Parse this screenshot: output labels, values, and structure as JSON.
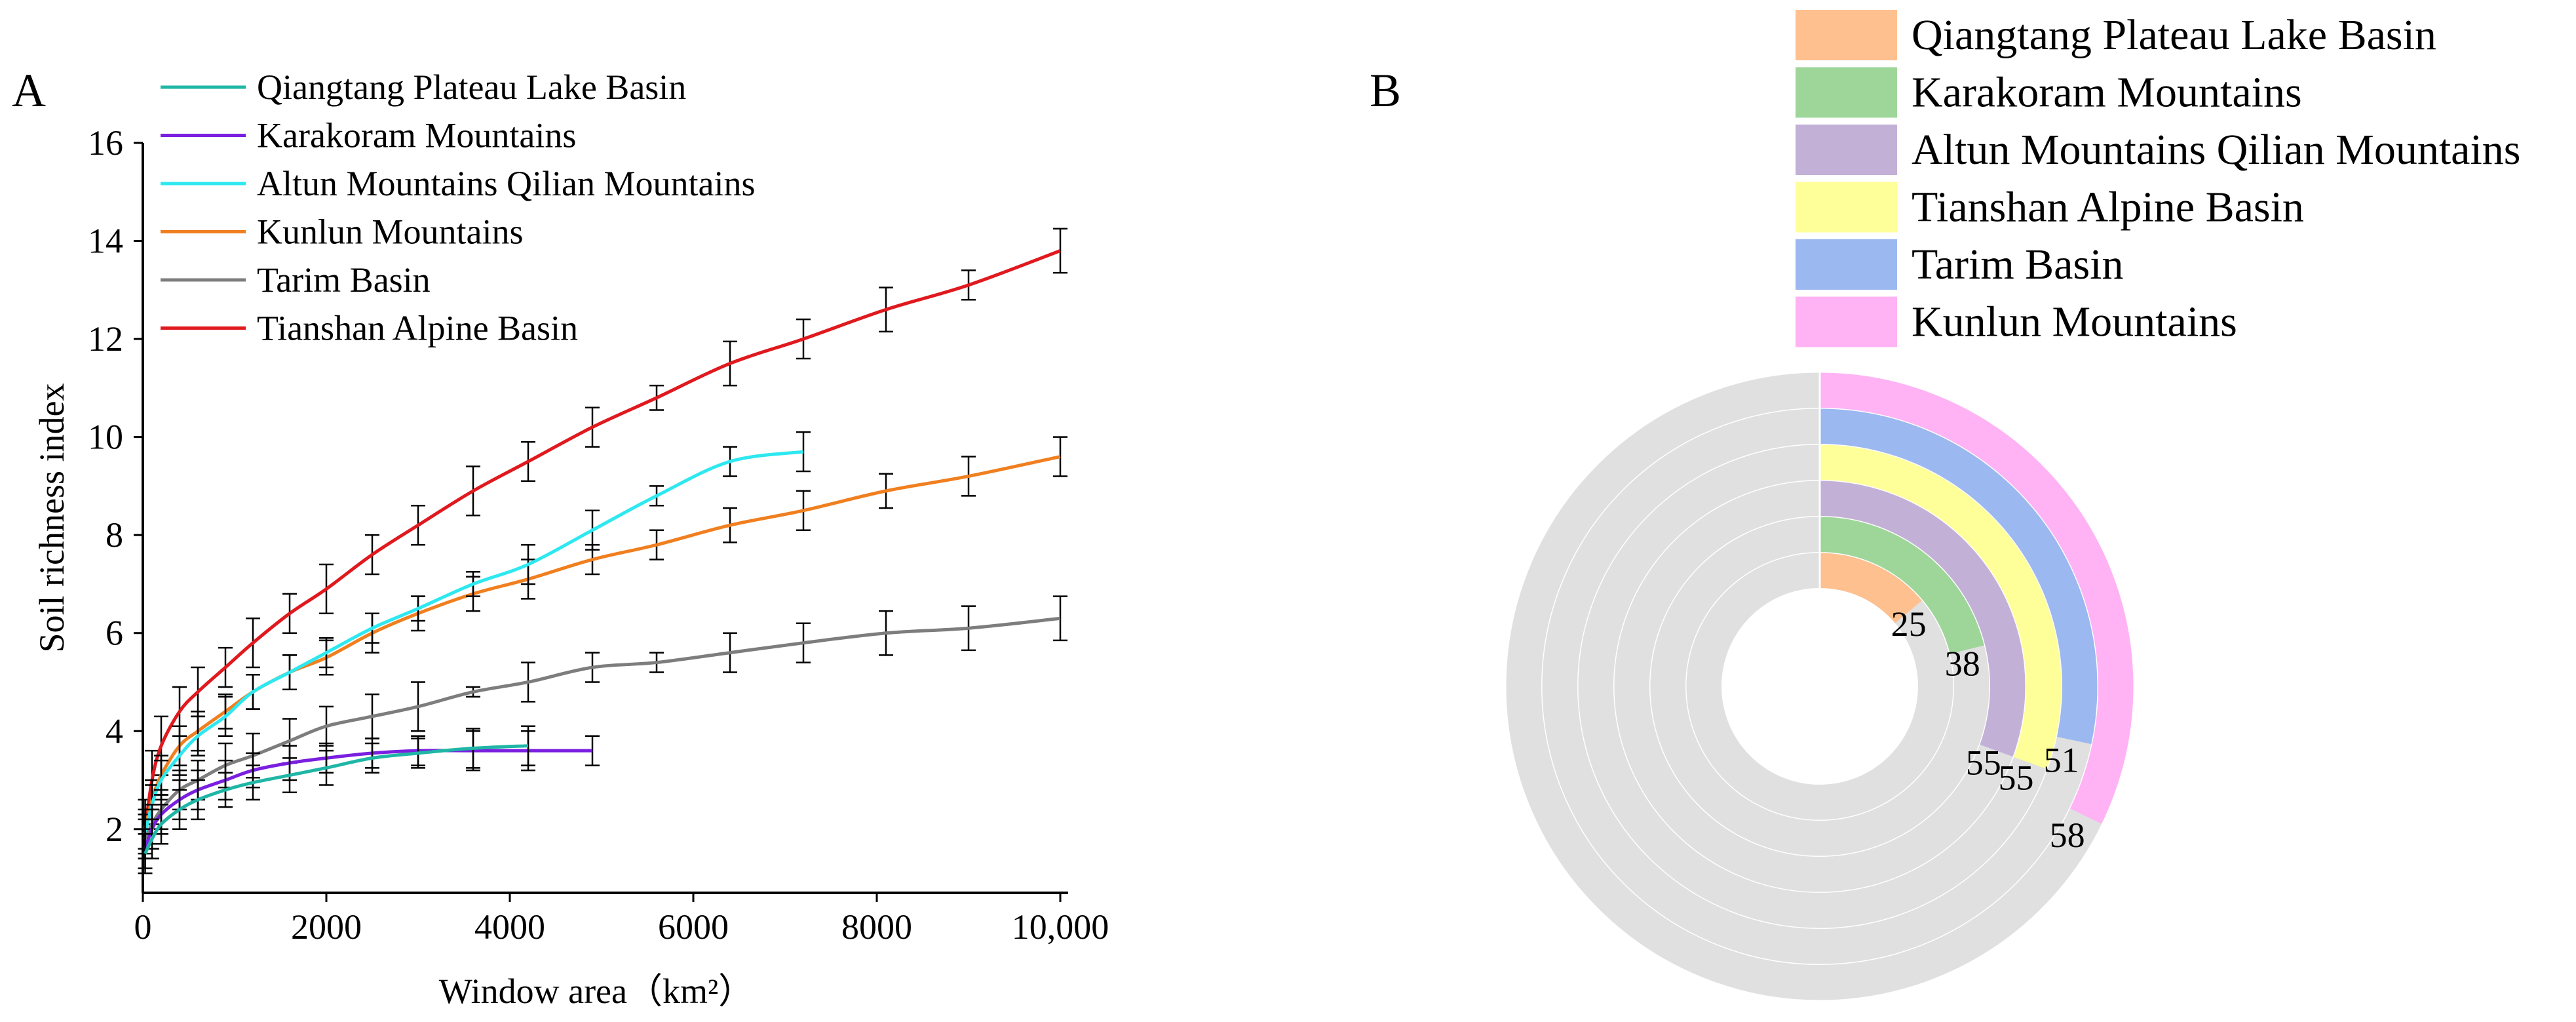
{
  "panel_a": {
    "label": "A",
    "legend": [
      {
        "name": "Qiangtang Plateau Lake Basin",
        "color": "#1fb6a6"
      },
      {
        "name": "Karakoram Mountains",
        "color": "#7a1fe0"
      },
      {
        "name": "Altun Mountains Qilian Mountains",
        "color": "#2ee8f0"
      },
      {
        "name": "Kunlun Mountains",
        "color": "#f07f1f"
      },
      {
        "name": "Tarim Basin",
        "color": "#7d7d7d"
      },
      {
        "name": "Tianshan Alpine Basin",
        "color": "#e0191e"
      }
    ]
  },
  "panel_b": {
    "label": "B",
    "legend": [
      {
        "name": "Qiangtang Plateau Lake Basin",
        "color": "#ffc08f"
      },
      {
        "name": "Karakoram Mountains",
        "color": "#9ed69a"
      },
      {
        "name": "Altun Mountains Qilian Mountains",
        "color": "#c3b0d6"
      },
      {
        "name": "Tianshan Alpine Basin",
        "color": "#ffff99"
      },
      {
        "name": "Tarim Basin",
        "color": "#9bb8f0"
      },
      {
        "name": "Kunlun Mountains",
        "color": "#ffb3f5"
      }
    ]
  },
  "chart_data": [
    {
      "type": "line",
      "title": "",
      "xlabel": "Window area（km²）",
      "ylabel": "Soil richness index",
      "xlim": [
        0,
        10000
      ],
      "ylim": [
        0.7,
        16
      ],
      "xticks": [
        0,
        2000,
        4000,
        6000,
        8000,
        10000
      ],
      "xtick_labels": [
        "0",
        "2000",
        "4000",
        "6000",
        "8000",
        "10,000"
      ],
      "yticks": [
        2,
        4,
        6,
        8,
        10,
        12,
        14,
        16
      ],
      "ytick_labels": [
        "2",
        "4",
        "6",
        "8",
        "10",
        "12",
        "14",
        "16"
      ],
      "legend_position": "top-left",
      "series": [
        {
          "name": "Tianshan Alpine Basin",
          "color": "#e0191e",
          "x": [
            25,
            100,
            200,
            400,
            600,
            900,
            1200,
            1600,
            2000,
            2500,
            3000,
            3600,
            4200,
            4900,
            5600,
            6400,
            7200,
            8100,
            9000,
            10000
          ],
          "y": [
            2.0,
            3.0,
            3.7,
            4.4,
            4.8,
            5.3,
            5.8,
            6.4,
            6.9,
            7.6,
            8.2,
            8.9,
            9.5,
            10.2,
            10.8,
            11.5,
            12.0,
            12.6,
            13.1,
            13.8
          ],
          "err": [
            0.6,
            0.6,
            0.6,
            0.5,
            0.5,
            0.4,
            0.5,
            0.4,
            0.5,
            0.4,
            0.4,
            0.5,
            0.4,
            0.4,
            0.25,
            0.45,
            0.4,
            0.45,
            0.3,
            0.45
          ]
        },
        {
          "name": "Kunlun Mountains",
          "color": "#f07f1f",
          "x": [
            25,
            100,
            200,
            400,
            600,
            900,
            1200,
            1600,
            2000,
            2500,
            3000,
            3600,
            4200,
            4900,
            5600,
            6400,
            7200,
            8100,
            9000,
            10000
          ],
          "y": [
            2.0,
            2.6,
            3.1,
            3.7,
            4.0,
            4.4,
            4.8,
            5.2,
            5.5,
            6.0,
            6.4,
            6.8,
            7.1,
            7.5,
            7.8,
            8.2,
            8.5,
            8.9,
            9.2,
            9.6
          ],
          "err": [
            0.4,
            0.4,
            0.4,
            0.4,
            0.4,
            0.35,
            0.35,
            0.35,
            0.35,
            0.4,
            0.35,
            0.35,
            0.4,
            0.3,
            0.3,
            0.35,
            0.4,
            0.35,
            0.4,
            0.4
          ]
        },
        {
          "name": "Altun Mountains Qilian Mountains",
          "color": "#2ee8f0",
          "x": [
            25,
            100,
            200,
            400,
            600,
            900,
            1200,
            1600,
            2000,
            2500,
            3000,
            3600,
            4200,
            4900,
            5600,
            6400,
            7200
          ],
          "y": [
            1.9,
            2.5,
            3.0,
            3.5,
            3.9,
            4.3,
            4.8,
            5.2,
            5.6,
            6.1,
            6.5,
            7.0,
            7.4,
            8.1,
            8.8,
            9.5,
            9.7
          ],
          "err": [
            0.4,
            0.4,
            0.4,
            0.4,
            0.4,
            0.4,
            0.35,
            0.35,
            0.3,
            0.3,
            0.25,
            0.25,
            0.4,
            0.4,
            0.2,
            0.3,
            0.4
          ]
        },
        {
          "name": "Tarim Basin",
          "color": "#7d7d7d",
          "x": [
            25,
            100,
            200,
            400,
            600,
            900,
            1200,
            1600,
            2000,
            2500,
            3000,
            3600,
            4200,
            4900,
            5600,
            6400,
            7200,
            8100,
            9000,
            10000
          ],
          "y": [
            1.8,
            2.1,
            2.4,
            2.8,
            3.0,
            3.3,
            3.5,
            3.8,
            4.1,
            4.3,
            4.5,
            4.8,
            5.0,
            5.3,
            5.4,
            5.6,
            5.8,
            6.0,
            6.1,
            6.3
          ],
          "err": [
            0.4,
            0.4,
            0.4,
            0.4,
            0.4,
            0.45,
            0.45,
            0.45,
            0.4,
            0.45,
            0.5,
            0.1,
            0.4,
            0.3,
            0.2,
            0.4,
            0.4,
            0.45,
            0.45,
            0.45
          ]
        },
        {
          "name": "Karakoram Mountains",
          "color": "#7a1fe0",
          "x": [
            25,
            100,
            200,
            400,
            600,
            900,
            1200,
            1600,
            2000,
            2500,
            3000,
            3600,
            4200,
            4900
          ],
          "y": [
            1.6,
            2.0,
            2.3,
            2.6,
            2.8,
            3.0,
            3.2,
            3.35,
            3.45,
            3.55,
            3.6,
            3.6,
            3.6,
            3.6
          ],
          "err": [
            0.4,
            0.4,
            0.4,
            0.4,
            0.4,
            0.4,
            0.35,
            0.35,
            0.3,
            0.3,
            0.3,
            0.4,
            0.4,
            0.3
          ]
        },
        {
          "name": "Qiangtang Plateau Lake Basin",
          "color": "#1fb6a6",
          "x": [
            25,
            100,
            200,
            400,
            600,
            900,
            1200,
            1600,
            2000,
            2500,
            3000,
            3600,
            4200
          ],
          "y": [
            1.5,
            1.8,
            2.1,
            2.4,
            2.6,
            2.8,
            2.95,
            3.1,
            3.25,
            3.45,
            3.55,
            3.65,
            3.7
          ],
          "err": [
            0.4,
            0.4,
            0.4,
            0.4,
            0.4,
            0.35,
            0.35,
            0.35,
            0.35,
            0.3,
            0.3,
            0.4,
            0.4
          ]
        }
      ]
    },
    {
      "type": "radial_bar",
      "max_value": 90,
      "units": "degrees_proxy",
      "rings": [
        {
          "name": "Qiangtang Plateau Lake Basin",
          "value": 25,
          "color": "#ffc08f"
        },
        {
          "name": "Karakoram Mountains",
          "value": 38,
          "color": "#9ed69a"
        },
        {
          "name": "Altun Mountains Qilian Mountains",
          "value": 55,
          "color": "#c3b0d6"
        },
        {
          "name": "Tianshan Alpine Basin",
          "value": 55,
          "color": "#ffff99"
        },
        {
          "name": "Tarim Basin",
          "value": 51,
          "color": "#9bb8f0"
        },
        {
          "name": "Kunlun Mountains",
          "value": 58,
          "color": "#ffb3f5"
        }
      ],
      "background_color": "#e0e0e0"
    }
  ]
}
